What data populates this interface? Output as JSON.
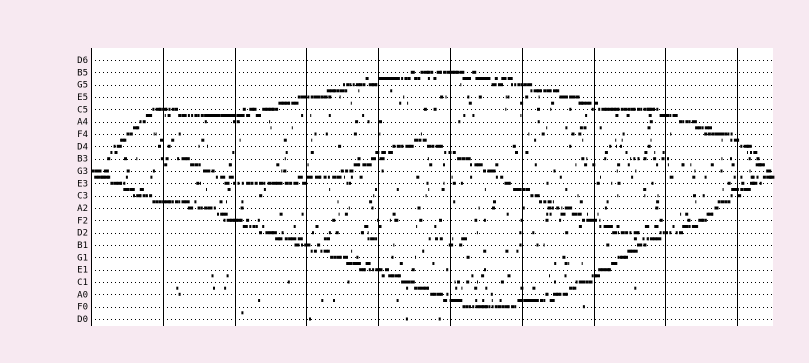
{
  "colors": {
    "page_background": "#f7e9f1",
    "plot_background": "#ffffff",
    "ink": "#000000"
  },
  "chart_data": {
    "type": "scatter",
    "title": "",
    "xlabel": "",
    "ylabel": "",
    "x_unit": "measure",
    "xlim": [
      0,
      9.5
    ],
    "y_unit": "note",
    "y_tick_labels": [
      "D6",
      "B5",
      "G5",
      "E5",
      "C5",
      "A4",
      "F4",
      "D4",
      "B3",
      "G3",
      "E3",
      "C3",
      "A2",
      "F2",
      "D2",
      "B1",
      "G1",
      "E1",
      "C1",
      "A0",
      "F0",
      "D0"
    ],
    "grid": {
      "horizontal_dotted": true,
      "vertical_solid_at_measures": true
    },
    "legend": "none",
    "series": [
      {
        "name": "",
        "shape": "sweeping ellipse of notes",
        "upper_arc": [
          [
            0.0,
            "G3"
          ],
          [
            0.15,
            "F3"
          ],
          [
            0.3,
            "D4"
          ],
          [
            0.5,
            "F4"
          ],
          [
            0.9,
            "C5"
          ],
          [
            1.5,
            "B4"
          ],
          [
            2.0,
            "B4"
          ],
          [
            2.5,
            "C5"
          ],
          [
            3.0,
            "E5"
          ],
          [
            3.6,
            "G5"
          ],
          [
            4.2,
            "A5"
          ],
          [
            4.9,
            "B5"
          ],
          [
            5.4,
            "A5"
          ],
          [
            6.0,
            "G5"
          ],
          [
            6.6,
            "E5"
          ],
          [
            7.2,
            "C5"
          ],
          [
            7.7,
            "C5"
          ],
          [
            8.1,
            "B4"
          ],
          [
            8.5,
            "G4"
          ],
          [
            8.9,
            "F4"
          ],
          [
            9.2,
            "C4"
          ],
          [
            9.35,
            "A3"
          ],
          [
            9.45,
            "F3"
          ]
        ],
        "lower_arc": [
          [
            0.0,
            "G3"
          ],
          [
            0.5,
            "D3"
          ],
          [
            1.0,
            "B2"
          ],
          [
            1.6,
            "A2"
          ],
          [
            2.0,
            "F2"
          ],
          [
            2.5,
            "D2"
          ],
          [
            3.0,
            "B1"
          ],
          [
            3.6,
            "F1"
          ],
          [
            4.2,
            "D1"
          ],
          [
            4.8,
            "A0"
          ],
          [
            5.3,
            "F0"
          ],
          [
            5.9,
            "F0"
          ],
          [
            6.5,
            "A0"
          ],
          [
            7.0,
            "D1"
          ],
          [
            7.5,
            "A1"
          ],
          [
            8.0,
            "D2"
          ],
          [
            8.5,
            "F2"
          ],
          [
            8.9,
            "C3"
          ],
          [
            9.2,
            "E3"
          ],
          [
            9.45,
            "F3"
          ]
        ],
        "inner_arc": [
          [
            1.2,
            "B3"
          ],
          [
            2.0,
            "E3"
          ],
          [
            2.8,
            "E3"
          ],
          [
            3.4,
            "F3"
          ],
          [
            3.9,
            "B3"
          ],
          [
            4.5,
            "E4"
          ],
          [
            5.2,
            "B3"
          ],
          [
            5.8,
            "E3"
          ],
          [
            6.5,
            "A2"
          ],
          [
            7.1,
            "E2"
          ],
          [
            7.6,
            "D2"
          ]
        ],
        "interior_density": "scattered notes throughout the ellipse, densest between x=3 and x=8"
      }
    ]
  }
}
